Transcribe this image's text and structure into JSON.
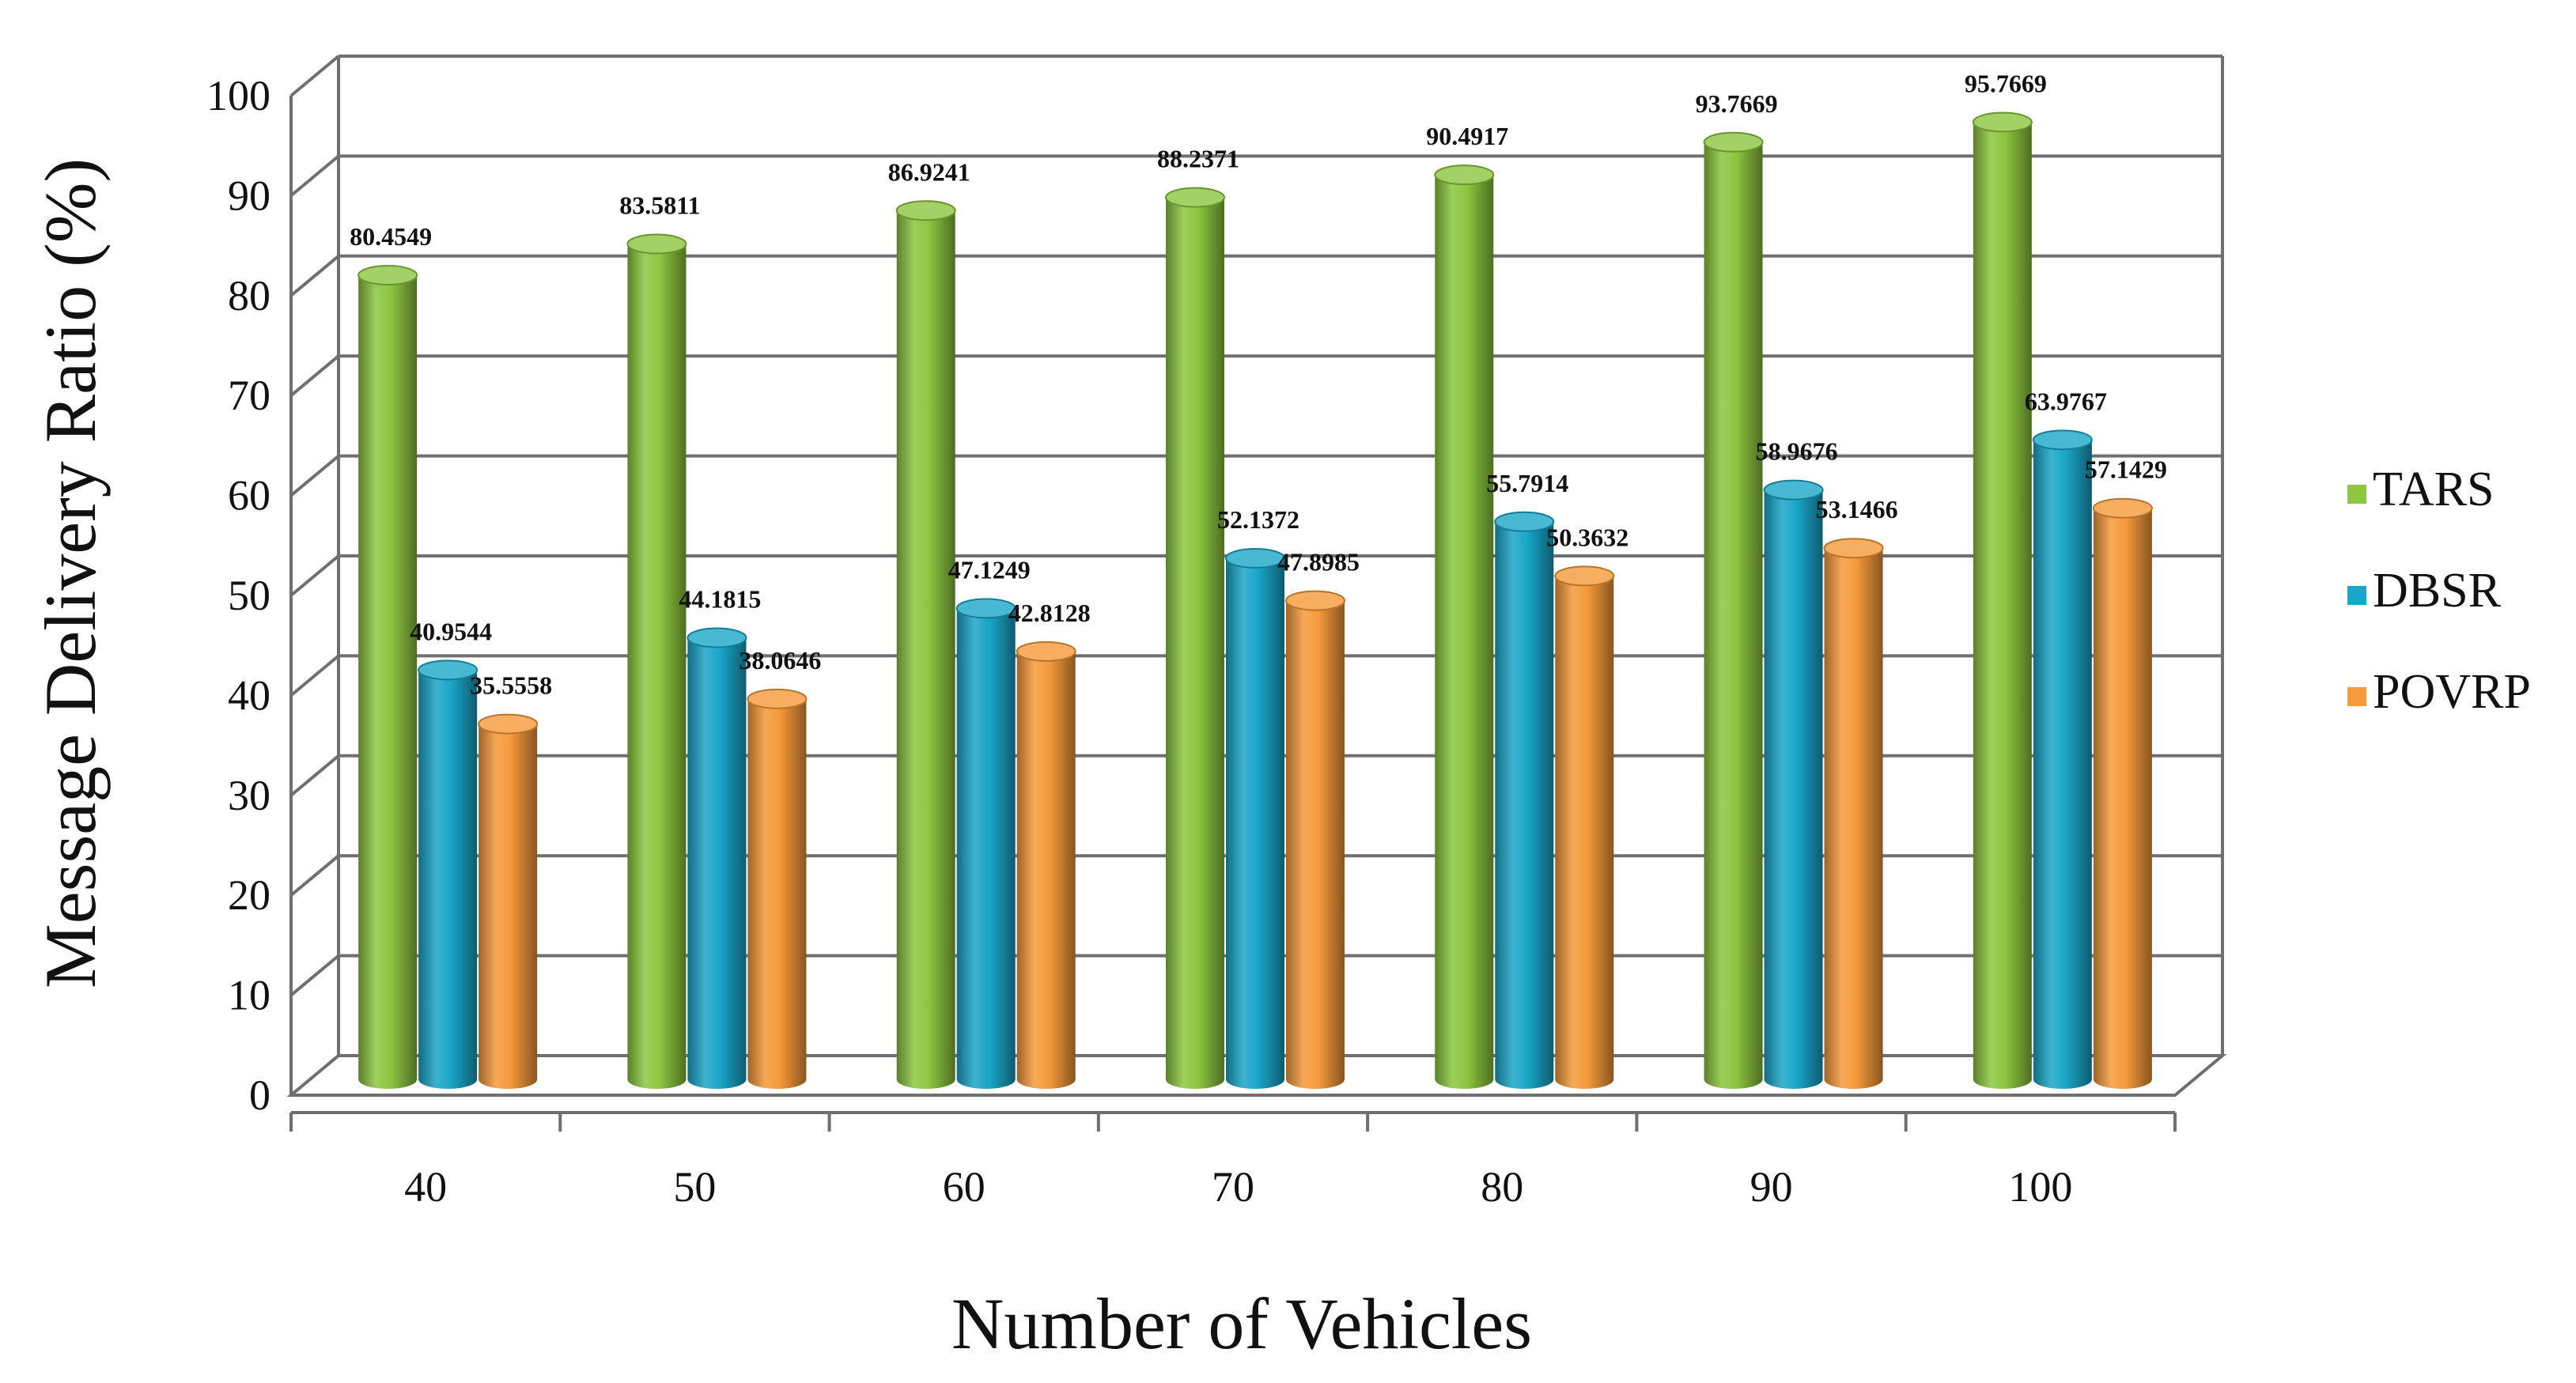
{
  "chart_data": {
    "type": "bar",
    "title": "",
    "xlabel": "Number of Vehicles",
    "ylabel": "Message Delivery Ratio (%)",
    "ylim": [
      0,
      100
    ],
    "yticks": [
      "0",
      "10",
      "20",
      "30",
      "40",
      "50",
      "60",
      "70",
      "80",
      "90",
      "100"
    ],
    "categories": [
      "40",
      "50",
      "60",
      "70",
      "80",
      "90",
      "100"
    ],
    "series": [
      {
        "name": "TARS",
        "color": "#8cc63f",
        "values": [
          80.4549,
          83.5811,
          86.9241,
          88.2371,
          90.4917,
          93.7669,
          95.7669
        ],
        "labels": [
          "80.4549",
          "83.5811",
          "86.9241",
          "88.2371",
          "90.4917",
          "93.7669",
          "95.7669"
        ]
      },
      {
        "name": "DBSR",
        "color": "#1aa6c8",
        "values": [
          40.9544,
          44.1815,
          47.1249,
          52.1372,
          55.7914,
          58.9676,
          63.9767
        ],
        "labels": [
          "40.9544",
          "44.1815",
          "47.1249",
          "52.1372",
          "55.7914",
          "58.9676",
          "63.9767"
        ]
      },
      {
        "name": "POVRP",
        "color": "#f59a3a",
        "values": [
          35.5558,
          38.0646,
          42.8128,
          47.8985,
          50.3632,
          53.1466,
          57.1429
        ],
        "labels": [
          "35.5558",
          "38.0646",
          "42.8128",
          "47.8985",
          "50.3632",
          "53.1466",
          "57.1429"
        ]
      }
    ],
    "legend_position": "right",
    "grid": true
  }
}
